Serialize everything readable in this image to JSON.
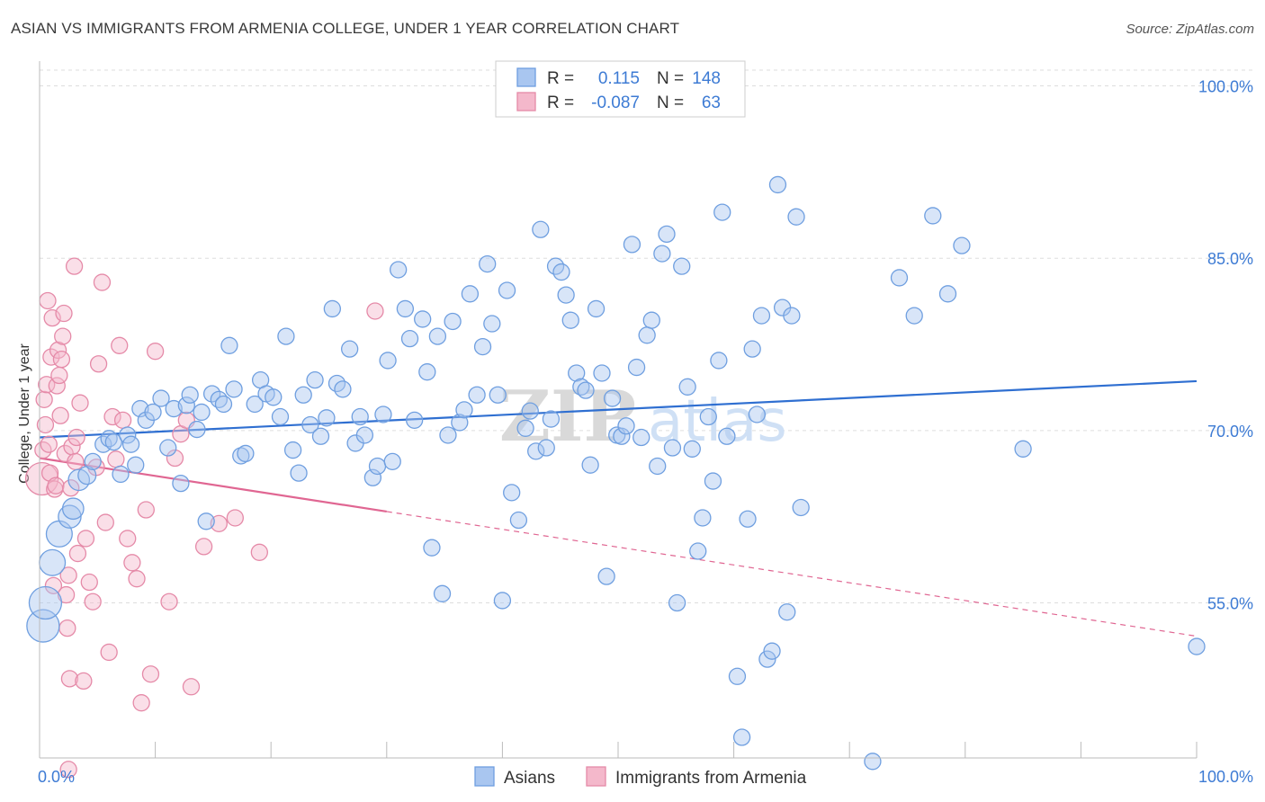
{
  "title": "ASIAN VS IMMIGRANTS FROM ARMENIA COLLEGE, UNDER 1 YEAR CORRELATION CHART",
  "source": "Source: ZipAtlas.com",
  "watermark": "ZIPatlas",
  "colors": {
    "blue": "#6f9fe0",
    "blue_fill": "#a9c6f0",
    "blue_line": "#2f6fd1",
    "pink": "#e58aa8",
    "pink_fill": "#f4b8cb",
    "pink_line": "#e06692",
    "axis_text": "#3d7bd4",
    "grid": "#dddddd"
  },
  "legend_top": [
    {
      "r_label": "R =",
      "r_value": "0.115",
      "n_label": "N =",
      "n_value": "148",
      "series": "asians"
    },
    {
      "r_label": "R =",
      "r_value": "-0.087",
      "n_label": "N =",
      "n_value": "63",
      "series": "armenia"
    }
  ],
  "legend_bottom": [
    {
      "label": "Asians",
      "series": "asians"
    },
    {
      "label": "Immigrants from Armenia",
      "series": "armenia"
    }
  ],
  "chart_data": {
    "type": "scatter",
    "title": "ASIAN VS IMMIGRANTS FROM ARMENIA COLLEGE, UNDER 1 YEAR CORRELATION CHART",
    "xlabel": "",
    "ylabel": "College, Under 1 year",
    "xlim": [
      0,
      100
    ],
    "ylim": [
      41.5,
      102
    ],
    "x_tick_labels": [
      "0.0%",
      "100.0%"
    ],
    "y_ticks": [
      55,
      70,
      85,
      100
    ],
    "y_tick_labels": [
      "55.0%",
      "70.0%",
      "85.0%",
      "100.0%"
    ],
    "grid": true,
    "legend_placement": "top-center",
    "series": [
      {
        "name": "Asians",
        "key": "asians",
        "trend": {
          "x": [
            0,
            100
          ],
          "y": [
            69.4,
            74.3
          ],
          "dashed_from": null
        },
        "points": [
          [
            0.3,
            53.0,
            2
          ],
          [
            0.5,
            55.0,
            2
          ],
          [
            1.1,
            58.5,
            1.6
          ],
          [
            1.7,
            61.0,
            1.6
          ],
          [
            2.6,
            62.5,
            1.4
          ],
          [
            2.9,
            63.2,
            1.3
          ],
          [
            3.4,
            65.7,
            1.3
          ],
          [
            4.1,
            66.1,
            1.1
          ],
          [
            4.6,
            67.3,
            1
          ],
          [
            5.5,
            68.8,
            1
          ],
          [
            6.0,
            69.3,
            1
          ],
          [
            6.4,
            69.0,
            1
          ],
          [
            7.0,
            66.2,
            1
          ],
          [
            7.6,
            69.6,
            1
          ],
          [
            7.9,
            68.8,
            1
          ],
          [
            8.3,
            67.0,
            1
          ],
          [
            8.7,
            71.9,
            1
          ],
          [
            9.2,
            70.9,
            1
          ],
          [
            9.8,
            71.6,
            1
          ],
          [
            10.5,
            72.8,
            1
          ],
          [
            11.1,
            68.5,
            1
          ],
          [
            11.6,
            71.9,
            1
          ],
          [
            12.2,
            65.4,
            1
          ],
          [
            12.7,
            72.2,
            1
          ],
          [
            13.0,
            73.1,
            1
          ],
          [
            13.6,
            70.1,
            1
          ],
          [
            14.0,
            71.6,
            1
          ],
          [
            14.4,
            62.1,
            1
          ],
          [
            14.9,
            73.2,
            1
          ],
          [
            15.5,
            72.7,
            1
          ],
          [
            15.9,
            72.3,
            1
          ],
          [
            16.4,
            77.4,
            1
          ],
          [
            16.8,
            73.6,
            1
          ],
          [
            17.4,
            67.8,
            1
          ],
          [
            17.8,
            68.0,
            1
          ],
          [
            18.6,
            72.3,
            1
          ],
          [
            19.1,
            74.4,
            1
          ],
          [
            19.6,
            73.2,
            1
          ],
          [
            20.2,
            72.9,
            1
          ],
          [
            20.8,
            71.2,
            1
          ],
          [
            21.3,
            78.2,
            1
          ],
          [
            21.9,
            68.3,
            1
          ],
          [
            22.4,
            66.3,
            1
          ],
          [
            22.8,
            73.1,
            1
          ],
          [
            23.4,
            70.5,
            1
          ],
          [
            23.8,
            74.4,
            1
          ],
          [
            24.3,
            69.5,
            1
          ],
          [
            24.8,
            71.1,
            1
          ],
          [
            25.3,
            80.6,
            1
          ],
          [
            25.7,
            74.1,
            1
          ],
          [
            26.2,
            73.6,
            1
          ],
          [
            26.8,
            77.1,
            1
          ],
          [
            27.3,
            68.9,
            1
          ],
          [
            27.7,
            71.2,
            1
          ],
          [
            28.1,
            69.6,
            1
          ],
          [
            28.8,
            65.9,
            1
          ],
          [
            29.2,
            66.9,
            1
          ],
          [
            29.7,
            71.4,
            1
          ],
          [
            30.1,
            76.1,
            1
          ],
          [
            30.5,
            67.3,
            1
          ],
          [
            31.0,
            84.0,
            1
          ],
          [
            31.6,
            80.6,
            1
          ],
          [
            32.0,
            78.0,
            1
          ],
          [
            32.4,
            70.9,
            1
          ],
          [
            33.1,
            79.7,
            1
          ],
          [
            33.5,
            75.1,
            1
          ],
          [
            33.9,
            59.8,
            1
          ],
          [
            34.4,
            78.2,
            1
          ],
          [
            34.8,
            55.8,
            1
          ],
          [
            35.3,
            69.6,
            1
          ],
          [
            35.7,
            79.5,
            1
          ],
          [
            36.3,
            70.7,
            1
          ],
          [
            36.7,
            71.8,
            1
          ],
          [
            37.2,
            81.9,
            1
          ],
          [
            37.8,
            73.1,
            1
          ],
          [
            38.3,
            77.3,
            1
          ],
          [
            38.7,
            84.5,
            1
          ],
          [
            39.1,
            79.3,
            1
          ],
          [
            39.6,
            73.1,
            1
          ],
          [
            40.0,
            55.2,
            1
          ],
          [
            40.4,
            82.2,
            1
          ],
          [
            40.8,
            64.6,
            1
          ],
          [
            41.4,
            62.2,
            1
          ],
          [
            42.0,
            70.2,
            1
          ],
          [
            42.4,
            71.7,
            1
          ],
          [
            42.9,
            68.2,
            1
          ],
          [
            43.3,
            87.5,
            1
          ],
          [
            43.8,
            68.5,
            1
          ],
          [
            44.2,
            71.0,
            1
          ],
          [
            44.6,
            84.3,
            1
          ],
          [
            45.1,
            83.8,
            1
          ],
          [
            45.5,
            81.8,
            1
          ],
          [
            45.9,
            79.6,
            1
          ],
          [
            46.4,
            75.0,
            1
          ],
          [
            46.8,
            73.8,
            1
          ],
          [
            47.2,
            73.5,
            1
          ],
          [
            47.6,
            67.0,
            1
          ],
          [
            48.1,
            80.6,
            1
          ],
          [
            48.6,
            75.0,
            1
          ],
          [
            49.0,
            57.3,
            1
          ],
          [
            49.5,
            72.8,
            1
          ],
          [
            49.9,
            69.6,
            1
          ],
          [
            50.3,
            69.5,
            1
          ],
          [
            50.7,
            70.4,
            1
          ],
          [
            51.2,
            86.2,
            1
          ],
          [
            51.6,
            75.5,
            1
          ],
          [
            52.0,
            69.4,
            1
          ],
          [
            52.5,
            78.3,
            1
          ],
          [
            52.9,
            79.6,
            1
          ],
          [
            53.4,
            66.9,
            1
          ],
          [
            53.8,
            85.4,
            1
          ],
          [
            54.2,
            87.1,
            1
          ],
          [
            54.7,
            68.5,
            1
          ],
          [
            55.1,
            55.0,
            1
          ],
          [
            55.5,
            84.3,
            1
          ],
          [
            56.0,
            73.8,
            1
          ],
          [
            56.4,
            68.4,
            1
          ],
          [
            56.9,
            59.5,
            1
          ],
          [
            57.3,
            62.4,
            1
          ],
          [
            57.8,
            71.2,
            1
          ],
          [
            58.2,
            65.6,
            1
          ],
          [
            58.7,
            76.1,
            1
          ],
          [
            59.0,
            89.0,
            1
          ],
          [
            59.4,
            69.5,
            1
          ],
          [
            60.3,
            48.6,
            1
          ],
          [
            60.7,
            43.3,
            1
          ],
          [
            61.2,
            62.3,
            1
          ],
          [
            61.6,
            77.1,
            1
          ],
          [
            62.0,
            71.4,
            1
          ],
          [
            62.4,
            80.0,
            1
          ],
          [
            62.9,
            50.1,
            1
          ],
          [
            63.3,
            50.8,
            1
          ],
          [
            63.8,
            91.4,
            1
          ],
          [
            64.2,
            80.7,
            1
          ],
          [
            64.6,
            54.2,
            1
          ],
          [
            65.0,
            80.0,
            1
          ],
          [
            65.4,
            88.6,
            1
          ],
          [
            65.8,
            63.3,
            1
          ],
          [
            72.0,
            41.2,
            1
          ],
          [
            74.3,
            83.3,
            1
          ],
          [
            75.6,
            80.0,
            1
          ],
          [
            77.2,
            88.7,
            1
          ],
          [
            78.5,
            81.9,
            1
          ],
          [
            79.7,
            86.1,
            1
          ],
          [
            85.0,
            68.4,
            1
          ],
          [
            100.0,
            51.2,
            1
          ]
        ]
      },
      {
        "name": "Immigrants from Armenia",
        "key": "armenia",
        "trend": {
          "x": [
            0,
            100
          ],
          "y": [
            67.6,
            52.1
          ],
          "dashed_from": 30
        },
        "points": [
          [
            0.2,
            65.8,
            2
          ],
          [
            0.3,
            68.3,
            1
          ],
          [
            0.4,
            72.7,
            1
          ],
          [
            0.5,
            70.5,
            1
          ],
          [
            0.6,
            74.0,
            1
          ],
          [
            0.7,
            81.3,
            1
          ],
          [
            0.8,
            68.8,
            1
          ],
          [
            0.9,
            66.3,
            1
          ],
          [
            1.0,
            76.4,
            1
          ],
          [
            1.1,
            79.8,
            1
          ],
          [
            1.2,
            56.5,
            1
          ],
          [
            1.3,
            64.9,
            1
          ],
          [
            1.4,
            65.2,
            1
          ],
          [
            1.5,
            73.9,
            1
          ],
          [
            1.6,
            77.0,
            1
          ],
          [
            1.7,
            74.8,
            1
          ],
          [
            1.8,
            71.3,
            1
          ],
          [
            1.9,
            76.2,
            1
          ],
          [
            2.0,
            78.2,
            1
          ],
          [
            2.1,
            80.2,
            1
          ],
          [
            2.2,
            68.0,
            1
          ],
          [
            2.3,
            55.7,
            1
          ],
          [
            2.4,
            52.8,
            1
          ],
          [
            2.5,
            57.4,
            1
          ],
          [
            2.6,
            48.4,
            1
          ],
          [
            2.7,
            65.0,
            1
          ],
          [
            2.8,
            68.6,
            1
          ],
          [
            3.0,
            84.3,
            1
          ],
          [
            3.1,
            67.3,
            1
          ],
          [
            3.2,
            69.4,
            1
          ],
          [
            3.3,
            59.3,
            1
          ],
          [
            3.5,
            72.4,
            1
          ],
          [
            3.8,
            48.2,
            1
          ],
          [
            4.0,
            60.6,
            1
          ],
          [
            4.3,
            56.8,
            1
          ],
          [
            4.6,
            55.1,
            1
          ],
          [
            4.9,
            66.8,
            1
          ],
          [
            5.1,
            75.8,
            1
          ],
          [
            5.4,
            82.9,
            1
          ],
          [
            5.7,
            62.0,
            1
          ],
          [
            6.0,
            50.7,
            1
          ],
          [
            6.3,
            71.2,
            1
          ],
          [
            6.6,
            67.5,
            1
          ],
          [
            6.9,
            77.4,
            1
          ],
          [
            7.2,
            70.9,
            1
          ],
          [
            7.6,
            60.6,
            1
          ],
          [
            8.0,
            58.5,
            1
          ],
          [
            8.4,
            57.1,
            1
          ],
          [
            8.8,
            46.3,
            1
          ],
          [
            9.2,
            63.1,
            1
          ],
          [
            9.6,
            48.8,
            1
          ],
          [
            10.0,
            76.9,
            1
          ],
          [
            11.2,
            55.1,
            1
          ],
          [
            11.7,
            67.6,
            1
          ],
          [
            12.2,
            69.7,
            1
          ],
          [
            12.7,
            70.9,
            1
          ],
          [
            13.1,
            47.7,
            1
          ],
          [
            14.2,
            59.9,
            1
          ],
          [
            15.5,
            61.9,
            1
          ],
          [
            16.9,
            62.4,
            1
          ],
          [
            19.0,
            59.4,
            1
          ],
          [
            29.0,
            80.4,
            1
          ],
          [
            2.5,
            40.5,
            1
          ]
        ]
      }
    ]
  }
}
